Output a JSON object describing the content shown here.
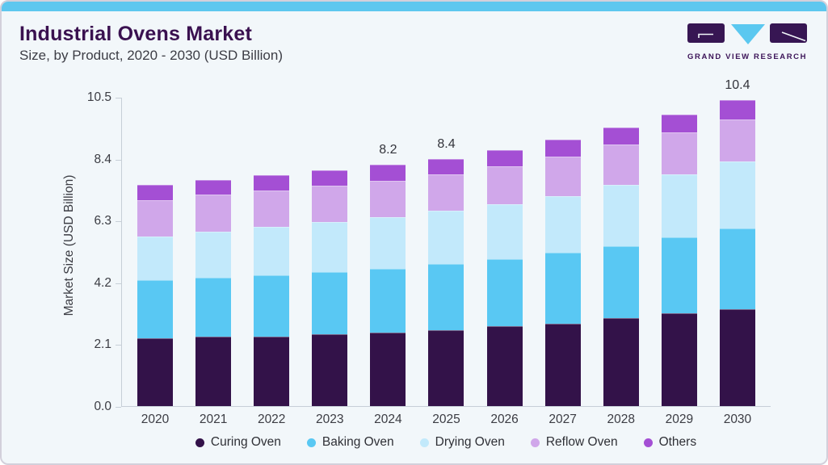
{
  "header": {
    "title": "Industrial Ovens Market",
    "subtitle": "Size, by Product, 2020 - 2030 (USD Billion)",
    "brand": "GRAND VIEW RESEARCH"
  },
  "colors": {
    "accent_bar": "#5ec7ef",
    "card_background": "#f2f7fa",
    "card_border": "#d3d0db",
    "title_text": "#3a1150",
    "body_text": "#3b3c43",
    "axis_line": "#c7cfd7",
    "logo_dark": "#371653",
    "logo_blue": "#5bc8f0"
  },
  "chart_data": {
    "type": "bar",
    "stacked": true,
    "title": "Industrial Ovens Market Size, by Product, 2020 - 2030 (USD Billion)",
    "xlabel": "",
    "ylabel": "Market Size (USD Billion)",
    "ymax": 10.5,
    "yticks": [
      "10.5",
      "8.4",
      "6.3",
      "4.2",
      "2.1",
      "0.0"
    ],
    "grid": false,
    "legend_position": "bottom",
    "categories": [
      "2020",
      "2021",
      "2022",
      "2023",
      "2024",
      "2025",
      "2026",
      "2027",
      "2028",
      "2029",
      "2030"
    ],
    "series": [
      {
        "name": "Curing Oven",
        "color": "#331249",
        "values": [
          2.3,
          2.35,
          2.37,
          2.43,
          2.5,
          2.58,
          2.72,
          2.81,
          2.99,
          3.14,
          3.28
        ]
      },
      {
        "name": "Baking Oven",
        "color": "#59c8f3",
        "values": [
          1.97,
          2.01,
          2.06,
          2.11,
          2.15,
          2.24,
          2.27,
          2.39,
          2.45,
          2.58,
          2.74
        ]
      },
      {
        "name": "Drying Oven",
        "color": "#c2e9fb",
        "values": [
          1.49,
          1.55,
          1.65,
          1.7,
          1.76,
          1.81,
          1.87,
          1.93,
          2.06,
          2.14,
          2.3
        ]
      },
      {
        "name": "Reflow Oven",
        "color": "#d0a7ea",
        "values": [
          1.23,
          1.26,
          1.23,
          1.25,
          1.24,
          1.24,
          1.28,
          1.35,
          1.37,
          1.44,
          1.42
        ]
      },
      {
        "name": "Others",
        "color": "#a44fd4",
        "values": [
          0.53,
          0.52,
          0.53,
          0.53,
          0.55,
          0.53,
          0.54,
          0.57,
          0.59,
          0.6,
          0.66
        ]
      }
    ],
    "bar_labels": [
      "",
      "",
      "",
      "",
      "8.2",
      "8.4",
      "",
      "",
      "",
      "",
      "10.4"
    ]
  }
}
